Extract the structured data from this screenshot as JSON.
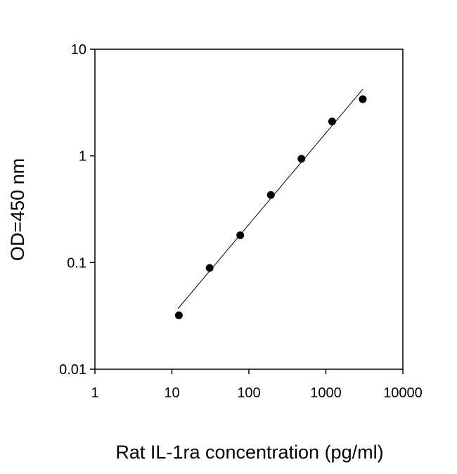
{
  "chart_data": {
    "type": "scatter",
    "x_label": "Rat IL-1ra concentration (pg/ml)",
    "y_label": "OD=450 nm",
    "x": [
      12.3,
      30.9,
      77.2,
      193,
      482,
      1206,
      3014
    ],
    "values": [
      0.032,
      0.089,
      0.18,
      0.43,
      0.94,
      2.1,
      3.4
    ],
    "color": "#000000",
    "trendline": {
      "x": [
        12,
        3000
      ],
      "y": [
        0.037,
        4.2
      ],
      "color": "#000000"
    },
    "xlim": [
      1,
      10000
    ],
    "ylim": [
      0.01,
      10
    ],
    "xticks": [
      1,
      10,
      100,
      1000,
      10000
    ],
    "yticks": [
      0.01,
      0.1,
      1,
      10
    ],
    "xscale": "log",
    "yscale": "log",
    "grid": false
  }
}
